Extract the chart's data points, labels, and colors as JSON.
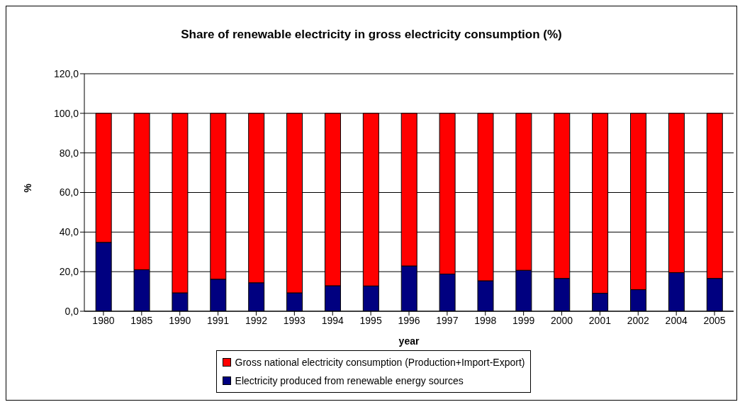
{
  "chart_data": {
    "type": "bar",
    "title": "Share of renewable electricity in gross electricity consumption (%)",
    "xlabel": "year",
    "ylabel": "%",
    "categories": [
      "1980",
      "1985",
      "1990",
      "1991",
      "1992",
      "1993",
      "1994",
      "1995",
      "1996",
      "1997",
      "1998",
      "1999",
      "2000",
      "2001",
      "2002",
      "2004",
      "2005"
    ],
    "stacked": true,
    "series": [
      {
        "name": "Electricity produced from renewable energy sources",
        "color": "#000080",
        "values": [
          34.8,
          21.0,
          9.3,
          16.2,
          14.4,
          9.3,
          12.9,
          12.8,
          22.9,
          18.8,
          15.4,
          20.7,
          16.6,
          9.1,
          10.9,
          19.5,
          16.6
        ]
      },
      {
        "name": "Gross national electricity consumption (Production+Import-Export)",
        "color": "#ff0000",
        "values": [
          65.2,
          79.0,
          90.7,
          83.8,
          85.6,
          90.7,
          87.1,
          87.2,
          77.1,
          81.2,
          84.6,
          79.3,
          83.4,
          90.9,
          89.1,
          80.5,
          83.4
        ]
      }
    ],
    "ylim": [
      0,
      120
    ],
    "yticks": [
      {
        "value": 0,
        "label": "0,0"
      },
      {
        "value": 20,
        "label": "20,0"
      },
      {
        "value": 40,
        "label": "40,0"
      },
      {
        "value": 60,
        "label": "60,0"
      },
      {
        "value": 80,
        "label": "80,0"
      },
      {
        "value": 100,
        "label": "100,0"
      },
      {
        "value": 120,
        "label": "120,0"
      }
    ],
    "grid": "y",
    "legend": "bottom"
  }
}
